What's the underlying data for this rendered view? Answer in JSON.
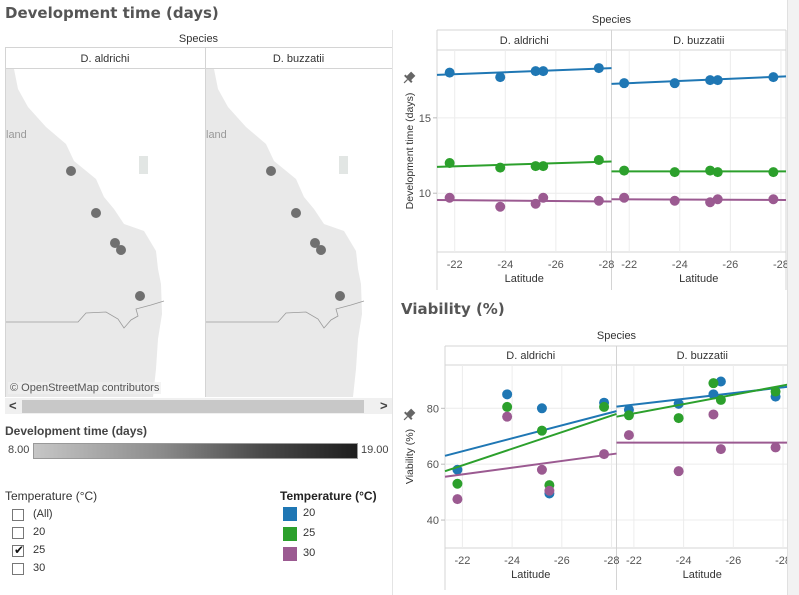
{
  "dashboard": {
    "dev_title": "Development time (days)",
    "via_title": "Viability (%)"
  },
  "map": {
    "column_header": "Species",
    "panels": [
      "D. aldrichi",
      "D. buzzatii"
    ],
    "region_label": "land",
    "attribution": "© OpenStreetMap contributors",
    "scroll_left": "<",
    "scroll_right": ">",
    "dot_color": "#707070"
  },
  "color_legend": {
    "title": "Development time (days)",
    "min_label": "8.00",
    "max_label": "19.00"
  },
  "temperature_filter": {
    "title": "Temperature (°C)",
    "options": [
      {
        "label": "(All)",
        "checked": false
      },
      {
        "label": "20",
        "checked": false
      },
      {
        "label": "25",
        "checked": true
      },
      {
        "label": "30",
        "checked": false
      }
    ]
  },
  "temperature_legend": {
    "title": "Temperature (°C)",
    "items": [
      {
        "label": "20",
        "color": "#1f77b4"
      },
      {
        "label": "25",
        "color": "#2ca02c"
      },
      {
        "label": "30",
        "color": "#9b5a91"
      }
    ]
  },
  "chart_data": [
    {
      "type": "scatter",
      "title": "Development time (days)",
      "facet_header": "Species",
      "facets": [
        "D. aldrichi",
        "D. buzzatii"
      ],
      "xlabel": "Latitude",
      "ylabel": "Development time (days)",
      "x_ticks": [
        "-22",
        "-24",
        "-26",
        "-28"
      ],
      "x_tick_values": [
        -22,
        -24,
        -26,
        -28
      ],
      "xlim": [
        -21.3,
        -28.2
      ],
      "y_ticks": [
        "10",
        "15"
      ],
      "y_tick_values": [
        10,
        15
      ],
      "ylim": [
        6.1,
        19.5
      ],
      "grid": true,
      "trend_lines": true,
      "x": [
        -21.8,
        -23.8,
        -25.2,
        -25.5,
        -27.7
      ],
      "series": [
        {
          "name": "20",
          "facet": "D. aldrichi",
          "color": "#1f77b4",
          "values": [
            18.0,
            17.7,
            18.1,
            18.1,
            18.3
          ],
          "trend": [
            17.85,
            18.3
          ]
        },
        {
          "name": "25",
          "facet": "D. aldrichi",
          "color": "#2ca02c",
          "values": [
            12.0,
            11.7,
            11.8,
            11.8,
            12.2
          ],
          "trend": [
            11.75,
            12.1
          ]
        },
        {
          "name": "30",
          "facet": "D. aldrichi",
          "color": "#9b5a91",
          "values": [
            9.7,
            9.1,
            9.3,
            9.7,
            9.5
          ],
          "trend": [
            9.55,
            9.45
          ]
        },
        {
          "name": "20",
          "facet": "D. buzzatii",
          "color": "#1f77b4",
          "values": [
            17.3,
            17.3,
            17.5,
            17.5,
            17.7
          ],
          "trend": [
            17.25,
            17.75
          ]
        },
        {
          "name": "25",
          "facet": "D. buzzatii",
          "color": "#2ca02c",
          "values": [
            11.5,
            11.4,
            11.5,
            11.4,
            11.4
          ],
          "trend": [
            11.45,
            11.45
          ]
        },
        {
          "name": "30",
          "facet": "D. buzzatii",
          "color": "#9b5a91",
          "values": [
            9.7,
            9.5,
            9.4,
            9.6,
            9.6
          ],
          "trend": [
            9.6,
            9.55
          ]
        }
      ]
    },
    {
      "type": "scatter",
      "title": "Viability (%)",
      "facet_header": "Species",
      "facets": [
        "D. aldrichi",
        "D. buzzatii"
      ],
      "xlabel": "Latitude",
      "ylabel": "Viability (%)",
      "x_ticks": [
        "-22",
        "-24",
        "-26",
        "-28"
      ],
      "x_tick_values": [
        -22,
        -24,
        -26,
        -28
      ],
      "xlim": [
        -21.3,
        -28.2
      ],
      "y_ticks": [
        "40",
        "60",
        "80"
      ],
      "y_tick_values": [
        40,
        60,
        80
      ],
      "ylim": [
        30,
        95.5
      ],
      "grid": true,
      "trend_lines": true,
      "x": [
        -21.8,
        -23.8,
        -25.2,
        -25.5,
        -27.7
      ],
      "series": [
        {
          "name": "20",
          "facet": "D. aldrichi",
          "color": "#1f77b4",
          "values": [
            58,
            85,
            80,
            49.5,
            82
          ],
          "trend": [
            63,
            79
          ]
        },
        {
          "name": "25",
          "facet": "D. aldrichi",
          "color": "#2ca02c",
          "values": [
            53,
            80.5,
            72,
            52.5,
            80.5
          ],
          "trend": [
            57.5,
            78
          ]
        },
        {
          "name": "30",
          "facet": "D. aldrichi",
          "color": "#9b5a91",
          "values": [
            47.5,
            77,
            58,
            50.5,
            63.6
          ],
          "trend": [
            55.5,
            63.8
          ]
        },
        {
          "name": "20",
          "facet": "D. buzzatii",
          "color": "#1f77b4",
          "values": [
            79.5,
            81.6,
            85,
            89.6,
            84.2
          ],
          "trend": [
            80.6,
            87.7
          ]
        },
        {
          "name": "25",
          "facet": "D. buzzatii",
          "color": "#2ca02c",
          "values": [
            77.5,
            76.5,
            89,
            83,
            86
          ],
          "trend": [
            77,
            88.5
          ]
        },
        {
          "name": "30",
          "facet": "D. buzzatii",
          "color": "#9b5a91",
          "values": [
            70.4,
            57.5,
            77.8,
            65.4,
            66
          ],
          "trend": [
            67.7,
            67.7
          ]
        }
      ]
    }
  ]
}
